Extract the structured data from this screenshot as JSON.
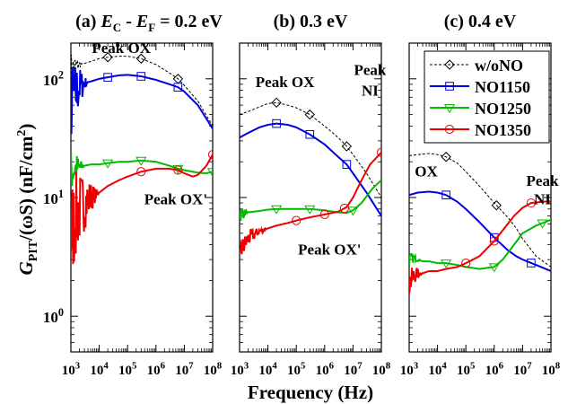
{
  "chart_data": {
    "type": "line",
    "y_axis_label": {
      "main": "G",
      "sub": "PIT",
      "rest": "/(ωS)",
      "unit": "(nF/cm",
      "unit_sup": "2",
      "unit_close": ")"
    },
    "x_axis_label": "Frequency   (Hz)",
    "xscale": "log",
    "yscale": "log",
    "xlim": [
      1000,
      100000000
    ],
    "ylim": [
      0.5,
      200
    ],
    "x_ticks": [
      {
        "base": "10",
        "exp": "3"
      },
      {
        "base": "10",
        "exp": "4"
      },
      {
        "base": "10",
        "exp": "5"
      },
      {
        "base": "10",
        "exp": "6"
      },
      {
        "base": "10",
        "exp": "7"
      },
      {
        "base": "10",
        "exp": "8"
      }
    ],
    "y_ticks": [
      {
        "base": "10",
        "exp": "0"
      },
      {
        "base": "10",
        "exp": "1"
      },
      {
        "base": "10",
        "exp": "2"
      }
    ],
    "legend": {
      "placement": "top-right of panel (c)",
      "entries": [
        {
          "name": "w/oNO",
          "color": "#000000",
          "marker": "diamond",
          "dash": true
        },
        {
          "name": "NO1150",
          "color": "#0000dd",
          "marker": "square",
          "dash": false
        },
        {
          "name": "NO1250",
          "color": "#00bb00",
          "marker": "triangle-down",
          "dash": false
        },
        {
          "name": "NO1350",
          "color": "#ee0000",
          "marker": "circle",
          "dash": false
        }
      ]
    },
    "panels": [
      {
        "title_prefix": "(a) ",
        "title_E1": "E",
        "title_sub1": "C",
        "title_mid": " - ",
        "title_E2": "E",
        "title_sub2": "F",
        "title_suffix": " = 0.2 eV",
        "annotations": [
          {
            "text": "Peak OX",
            "x": 60000,
            "y": 165
          },
          {
            "text": "Peak OX'",
            "x": 5000000,
            "y": 8.8
          }
        ],
        "series": [
          {
            "name": "w/oNO",
            "x": [
              1000,
              1400,
              2000,
              3000,
              5000,
              10000,
              20000,
              50000,
              100000,
              300000,
              1000000,
              3000000,
              6000000,
              10000000,
              30000000,
              100000000
            ],
            "y": [
              120,
              128,
              132,
              135,
              140,
              148,
              152,
              155,
              155,
              148,
              132,
              112,
              100,
              88,
              65,
              40
            ],
            "noise_until": 2500,
            "noise_amp": 0.15,
            "markers_x": [
              20000,
              300000,
              6000000
            ]
          },
          {
            "name": "NO1150",
            "x": [
              1000,
              1400,
              2000,
              3000,
              5000,
              10000,
              20000,
              50000,
              100000,
              300000,
              1000000,
              3000000,
              6000000,
              10000000,
              30000000,
              100000000
            ],
            "y": [
              60,
              75,
              85,
              92,
              95,
              100,
              103,
              107,
              108,
              105,
              98,
              90,
              85,
              78,
              60,
              38
            ],
            "noise_until": 4000,
            "noise_amp": 0.35,
            "markers_x": [
              20000,
              300000,
              6000000
            ]
          },
          {
            "name": "NO1250",
            "x": [
              1000,
              2000,
              3000,
              5000,
              10000,
              20000,
              50000,
              100000,
              300000,
              1000000,
              3000000,
              6000000,
              10000000,
              30000000,
              60000000,
              100000000
            ],
            "y": [
              17,
              18,
              18.5,
              19,
              19,
              19.5,
              20,
              20,
              20.5,
              20,
              18.5,
              17.5,
              17,
              16.2,
              16,
              16.5
            ],
            "noise_until": 3000,
            "noise_amp": 0.22,
            "markers_x": [
              20000,
              300000,
              6000000,
              100000000
            ]
          },
          {
            "name": "NO1350",
            "x": [
              1000,
              1500,
              2000,
              3000,
              5000,
              10000,
              20000,
              50000,
              100000,
              300000,
              1000000,
              3000000,
              6000000,
              10000000,
              20000000,
              30000000,
              60000000,
              100000000
            ],
            "y": [
              5,
              7,
              8,
              9,
              10,
              11,
              12.5,
              14,
              15,
              16.5,
              17.5,
              17.5,
              17,
              16,
              15,
              15.5,
              18.5,
              23
            ],
            "noise_until": 10000,
            "noise_amp": 0.45,
            "markers_x": [
              300000,
              6000000,
              100000000
            ]
          }
        ]
      },
      {
        "title_prefix": "(b) 0.3 eV",
        "annotations": [
          {
            "text": "Peak OX",
            "x": 40000,
            "y": 85
          },
          {
            "text": "Peak",
            "x": 40000000,
            "y": 108
          },
          {
            "text": "NI",
            "x": 40000000,
            "y": 72
          },
          {
            "text": "Peak OX'",
            "x": 1500000,
            "y": 3.3
          }
        ],
        "series": [
          {
            "name": "w/oNO",
            "x": [
              1000,
              2000,
              5000,
              10000,
              20000,
              50000,
              100000,
              300000,
              1000000,
              3000000,
              6000000,
              10000000,
              30000000,
              100000000
            ],
            "y": [
              50,
              53,
              58,
              62,
              63,
              60,
              57,
              50,
              40,
              32,
              27,
              23,
              16,
              10
            ],
            "noise_until": 0,
            "noise_amp": 0,
            "markers_x": [
              20000,
              300000,
              6000000
            ]
          },
          {
            "name": "NO1150",
            "x": [
              1000,
              2000,
              5000,
              10000,
              20000,
              50000,
              100000,
              300000,
              1000000,
              3000000,
              6000000,
              10000000,
              30000000,
              100000000
            ],
            "y": [
              32,
              35,
              39,
              41,
              42,
              41,
              39,
              34,
              28,
              22,
              19,
              16,
              11,
              7
            ],
            "noise_until": 0,
            "noise_amp": 0,
            "markers_x": [
              20000,
              300000,
              6000000
            ]
          },
          {
            "name": "NO1250",
            "x": [
              1000,
              2000,
              5000,
              10000,
              20000,
              50000,
              100000,
              300000,
              1000000,
              3000000,
              6000000,
              10000000,
              20000000,
              50000000,
              100000000
            ],
            "y": [
              7.3,
              7.5,
              7.7,
              7.9,
              8,
              8,
              8,
              8,
              7.8,
              7.5,
              7.4,
              7.8,
              9,
              12,
              14
            ],
            "noise_until": 2000,
            "noise_amp": 0.08,
            "markers_x": [
              20000,
              300000,
              10000000
            ]
          },
          {
            "name": "NO1350",
            "x": [
              1000,
              1500,
              2000,
              3000,
              5000,
              10000,
              20000,
              50000,
              100000,
              300000,
              1000000,
              3000000,
              6000000,
              10000000,
              20000000,
              40000000,
              100000000
            ],
            "y": [
              3.5,
              4,
              4.5,
              4.8,
              5.2,
              5.5,
              5.8,
              6.1,
              6.4,
              6.8,
              7.2,
              7.6,
              8.3,
              10,
              14,
              19,
              24
            ],
            "noise_until": 10000,
            "noise_amp": 0.1,
            "markers_x": [
              100000,
              1000000,
              5000000,
              100000000
            ]
          }
        ]
      },
      {
        "title_prefix": "(c) 0.4 eV",
        "annotations": [
          {
            "text": "OX",
            "x": 4000,
            "y": 15
          },
          {
            "text": "Peak",
            "x": 50000000,
            "y": 12.5
          },
          {
            "text": "NI",
            "x": 50000000,
            "y": 8.8
          }
        ],
        "series": [
          {
            "name": "w/oNO",
            "x": [
              1000,
              2000,
              5000,
              10000,
              20000,
              50000,
              100000,
              300000,
              1000000,
              3000000,
              6000000,
              10000000,
              30000000,
              100000000
            ],
            "y": [
              22.5,
              23,
              23.5,
              23,
              22,
              19.5,
              16.5,
              12.5,
              9,
              6.8,
              5.5,
              4.5,
              3.2,
              2.6
            ],
            "noise_until": 0,
            "noise_amp": 0,
            "markers_x": [
              20000,
              1200000
            ]
          },
          {
            "name": "NO1150",
            "x": [
              1000,
              2000,
              5000,
              10000,
              20000,
              50000,
              100000,
              300000,
              1000000,
              3000000,
              6000000,
              10000000,
              30000000,
              100000000
            ],
            "y": [
              10.5,
              11,
              11.2,
              11,
              10.5,
              9.2,
              8,
              6.2,
              4.6,
              3.6,
              3.2,
              3,
              2.7,
              2.4
            ],
            "noise_until": 0,
            "noise_amp": 0,
            "markers_x": [
              20000,
              1000000,
              20000000
            ]
          },
          {
            "name": "NO1250",
            "x": [
              1000,
              1500,
              2000,
              3000,
              5000,
              10000,
              20000,
              50000,
              100000,
              300000,
              1000000,
              2000000,
              5000000,
              10000000,
              30000000,
              100000000
            ],
            "y": [
              3,
              3.1,
              3,
              2.9,
              2.9,
              2.8,
              2.8,
              2.7,
              2.6,
              2.5,
              2.6,
              3,
              4,
              5,
              5.8,
              6.5
            ],
            "noise_until": 2500,
            "noise_amp": 0.06,
            "markers_x": [
              20000,
              1000000,
              50000000
            ]
          },
          {
            "name": "NO1350",
            "x": [
              1000,
              1500,
              2000,
              3000,
              5000,
              10000,
              20000,
              50000,
              100000,
              300000,
              1000000,
              2000000,
              5000000,
              10000000,
              20000000,
              50000000,
              100000000
            ],
            "y": [
              1.9,
              2.2,
              2.3,
              2.3,
              2.4,
              2.4,
              2.5,
              2.6,
              2.8,
              3.2,
              4.3,
              5.3,
              7,
              8.2,
              9,
              9.2,
              9.3
            ],
            "noise_until": 3000,
            "noise_amp": 0.12,
            "markers_x": [
              100000,
              1000000,
              20000000
            ]
          }
        ]
      }
    ]
  }
}
